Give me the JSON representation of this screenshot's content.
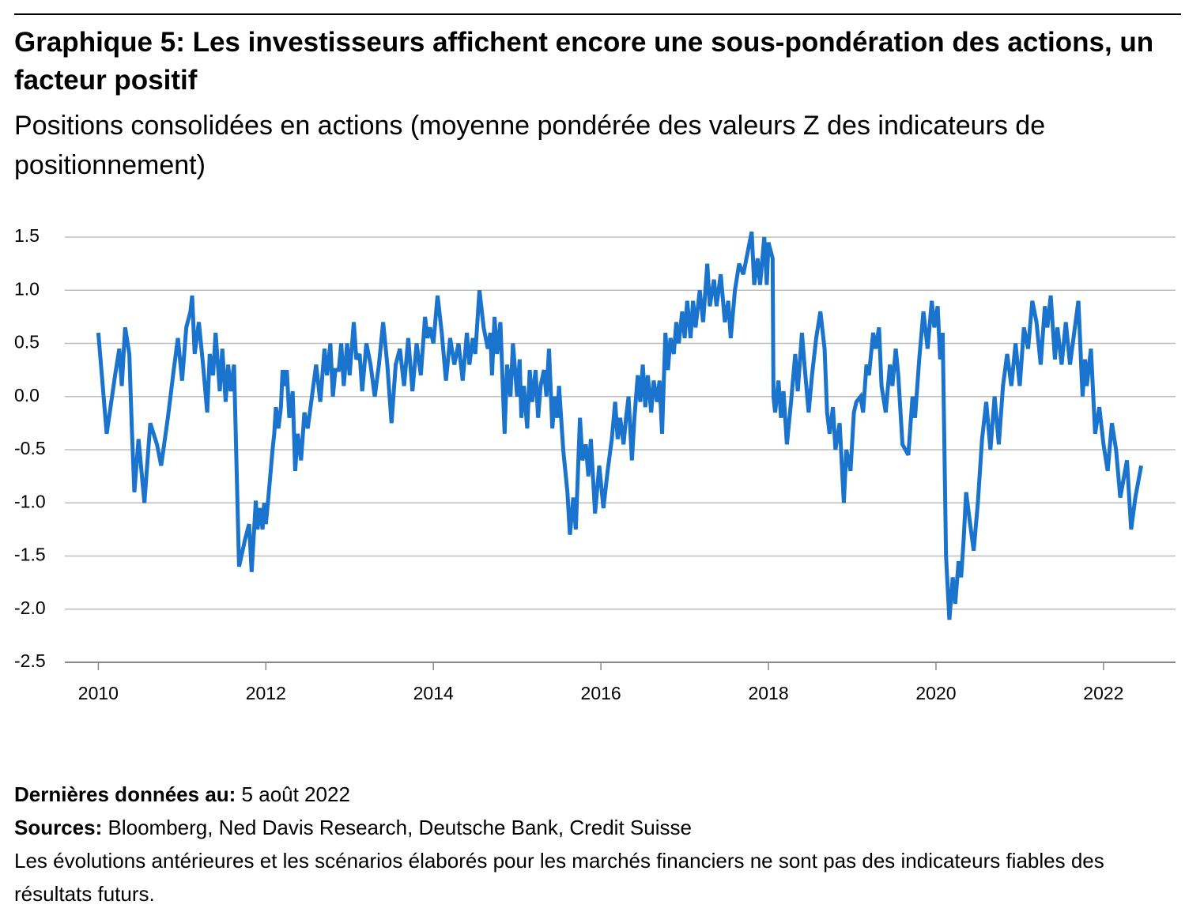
{
  "chart_data": {
    "type": "line",
    "title": "Graphique 5: Les investisseurs affichent encore une sous-pondération des actions, un facteur positif",
    "subtitle": "Positions consolidées en actions (moyenne pondérée des valeurs Z des indicateurs de positionnement)",
    "color": "#1a73cc",
    "grid": true,
    "xlim": [
      2009.6,
      2022.86
    ],
    "xticks": [
      2010,
      2012,
      2014,
      2016,
      2018,
      2020,
      2022
    ],
    "ylim": [
      -2.5,
      1.5
    ],
    "yticks": [
      1.5,
      {
        "value": 1,
        "label": "1.0"
      },
      0.5,
      {
        "value": 0,
        "label": "0.0"
      },
      -0.5,
      {
        "value": -1,
        "label": "-1.0"
      },
      -1.5,
      {
        "value": -2,
        "label": "-2.0"
      },
      -2.5
    ],
    "x": [
      2010.0,
      2010.1,
      2010.2,
      2010.25,
      2010.28,
      2010.32,
      2010.37,
      2010.4,
      2010.43,
      2010.48,
      2010.55,
      2010.62,
      2010.7,
      2010.75,
      2010.83,
      2010.9,
      2010.95,
      2011.0,
      2011.05,
      2011.1,
      2011.12,
      2011.15,
      2011.2,
      2011.25,
      2011.3,
      2011.33,
      2011.37,
      2011.4,
      2011.45,
      2011.48,
      2011.52,
      2011.55,
      2011.58,
      2011.62,
      2011.68,
      2011.75,
      2011.8,
      2011.83,
      2011.88,
      2011.9,
      2011.93,
      2011.96,
      2011.98,
      2012.0,
      2012.03,
      2012.08,
      2012.1,
      2012.12,
      2012.15,
      2012.18,
      2012.2,
      2012.23,
      2012.25,
      2012.28,
      2012.32,
      2012.35,
      2012.38,
      2012.42,
      2012.46,
      2012.5,
      2012.55,
      2012.6,
      2012.65,
      2012.7,
      2012.73,
      2012.77,
      2012.8,
      2012.83,
      2012.87,
      2012.9,
      2012.93,
      2012.97,
      2013.0,
      2013.05,
      2013.08,
      2013.12,
      2013.15,
      2013.2,
      2013.25,
      2013.3,
      2013.35,
      2013.4,
      2013.45,
      2013.5,
      2013.55,
      2013.6,
      2013.65,
      2013.7,
      2013.75,
      2013.8,
      2013.85,
      2013.9,
      2013.93,
      2013.96,
      2014.0,
      2014.05,
      2014.1,
      2014.15,
      2014.2,
      2014.25,
      2014.3,
      2014.35,
      2014.4,
      2014.43,
      2014.47,
      2014.5,
      2014.55,
      2014.6,
      2014.65,
      2014.68,
      2014.7,
      2014.73,
      2014.76,
      2014.8,
      2014.85,
      2014.88,
      2014.92,
      2014.95,
      2015.0,
      2015.03,
      2015.05,
      2015.08,
      2015.12,
      2015.15,
      2015.18,
      2015.22,
      2015.25,
      2015.28,
      2015.32,
      2015.35,
      2015.38,
      2015.42,
      2015.45,
      2015.48,
      2015.5,
      2015.55,
      2015.6,
      2015.63,
      2015.67,
      2015.7,
      2015.75,
      2015.78,
      2015.82,
      2015.85,
      2015.88,
      2015.93,
      2015.98,
      2016.03,
      2016.08,
      2016.13,
      2016.17,
      2016.2,
      2016.23,
      2016.27,
      2016.3,
      2016.33,
      2016.37,
      2016.4,
      2016.44,
      2016.47,
      2016.5,
      2016.53,
      2016.56,
      2016.6,
      2016.63,
      2016.67,
      2016.7,
      2016.73,
      2016.77,
      2016.8,
      2016.83,
      2016.87,
      2016.9,
      2016.93,
      2016.97,
      2017.0,
      2017.03,
      2017.07,
      2017.1,
      2017.13,
      2017.18,
      2017.22,
      2017.27,
      2017.3,
      2017.35,
      2017.38,
      2017.43,
      2017.48,
      2017.52,
      2017.55,
      2017.6,
      2017.65,
      2017.7,
      2017.75,
      2017.8,
      2017.83,
      2017.87,
      2017.9,
      2017.95,
      2017.98,
      2018.0,
      2018.05,
      2018.06,
      2018.08,
      2018.12,
      2018.15,
      2018.18,
      2018.22,
      2018.27,
      2018.32,
      2018.35,
      2018.4,
      2018.43,
      2018.48,
      2018.52,
      2018.57,
      2018.62,
      2018.67,
      2018.7,
      2018.73,
      2018.77,
      2018.8,
      2018.85,
      2018.9,
      2018.93,
      2018.98,
      2019.02,
      2019.05,
      2019.1,
      2019.13,
      2019.17,
      2019.2,
      2019.25,
      2019.28,
      2019.32,
      2019.35,
      2019.4,
      2019.45,
      2019.48,
      2019.52,
      2019.55,
      2019.6,
      2019.67,
      2019.72,
      2019.75,
      2019.8,
      2019.85,
      2019.9,
      2019.95,
      2019.98,
      2020.02,
      2020.05,
      2020.08,
      2020.12,
      2020.16,
      2020.2,
      2020.23,
      2020.27,
      2020.3,
      2020.33,
      2020.36,
      2020.4,
      2020.45,
      2020.5,
      2020.55,
      2020.6,
      2020.65,
      2020.7,
      2020.75,
      2020.8,
      2020.85,
      2020.9,
      2020.95,
      2021.0,
      2021.05,
      2021.1,
      2021.15,
      2021.2,
      2021.25,
      2021.3,
      2021.33,
      2021.37,
      2021.42,
      2021.45,
      2021.5,
      2021.55,
      2021.6,
      2021.65,
      2021.7,
      2021.75,
      2021.78,
      2021.8,
      2021.85,
      2021.9,
      2021.95,
      2022.0,
      2022.05,
      2022.1,
      2022.15,
      2022.2,
      2022.28,
      2022.33,
      2022.38,
      2022.45
    ],
    "values": [
      0.6,
      -0.35,
      0.2,
      0.45,
      0.1,
      0.65,
      0.4,
      -0.3,
      -0.9,
      -0.4,
      -1.0,
      -0.25,
      -0.45,
      -0.65,
      -0.2,
      0.25,
      0.55,
      0.15,
      0.65,
      0.8,
      0.95,
      0.4,
      0.7,
      0.3,
      -0.15,
      0.4,
      0.2,
      0.6,
      0.05,
      0.45,
      -0.05,
      0.3,
      0.05,
      0.3,
      -1.6,
      -1.35,
      -1.2,
      -1.65,
      -0.98,
      -1.25,
      -1.05,
      -1.25,
      -1.0,
      -1.2,
      -0.95,
      -0.5,
      -0.35,
      -0.1,
      -0.3,
      -0.1,
      0.25,
      0.1,
      0.25,
      -0.2,
      0.05,
      -0.7,
      -0.35,
      -0.6,
      -0.15,
      -0.3,
      0.0,
      0.3,
      -0.05,
      0.45,
      0.2,
      0.5,
      0.0,
      0.25,
      0.25,
      0.5,
      0.1,
      0.5,
      0.2,
      0.7,
      0.35,
      0.4,
      0.05,
      0.5,
      0.3,
      0.0,
      0.3,
      0.7,
      0.3,
      -0.25,
      0.3,
      0.45,
      0.1,
      0.55,
      0.05,
      0.5,
      0.2,
      0.75,
      0.55,
      0.65,
      0.5,
      0.95,
      0.6,
      0.15,
      0.55,
      0.3,
      0.5,
      0.15,
      0.6,
      0.3,
      0.55,
      0.4,
      1.0,
      0.65,
      0.45,
      0.6,
      0.2,
      0.75,
      0.4,
      0.7,
      -0.35,
      0.3,
      0.0,
      0.5,
      0.0,
      0.35,
      -0.2,
      0.1,
      -0.3,
      0.25,
      -0.05,
      0.25,
      -0.2,
      0.1,
      0.25,
      0.0,
      0.45,
      -0.3,
      0.0,
      -0.2,
      0.1,
      -0.5,
      -0.9,
      -1.3,
      -0.95,
      -1.25,
      -0.2,
      -0.6,
      -0.45,
      -0.75,
      -0.4,
      -1.1,
      -0.65,
      -1.05,
      -0.7,
      -0.4,
      -0.05,
      -0.4,
      -0.2,
      -0.45,
      -0.2,
      0.0,
      -0.6,
      -0.2,
      0.2,
      -0.05,
      0.3,
      -0.1,
      0.2,
      -0.15,
      0.15,
      -0.05,
      0.15,
      -0.35,
      0.6,
      0.25,
      0.55,
      0.4,
      0.7,
      0.5,
      0.8,
      0.55,
      0.9,
      0.55,
      0.9,
      0.65,
      1.0,
      0.7,
      1.25,
      0.85,
      1.1,
      0.85,
      1.15,
      0.7,
      0.9,
      0.55,
      1.0,
      1.25,
      1.15,
      1.35,
      1.55,
      1.05,
      1.3,
      1.05,
      1.5,
      1.05,
      1.45,
      1.3,
      0.0,
      -0.15,
      0.15,
      -0.2,
      0.05,
      -0.45,
      -0.05,
      0.4,
      0.05,
      0.6,
      0.3,
      -0.15,
      0.2,
      0.55,
      0.8,
      0.45,
      -0.15,
      -0.35,
      -0.1,
      -0.5,
      -0.25,
      -1.0,
      -0.5,
      -0.7,
      -0.15,
      -0.05,
      0.0,
      -0.15,
      0.3,
      0.2,
      0.6,
      0.45,
      0.65,
      0.1,
      -0.15,
      0.3,
      0.1,
      0.45,
      0.2,
      -0.45,
      -0.55,
      0.0,
      -0.2,
      0.35,
      0.8,
      0.45,
      0.9,
      0.65,
      0.85,
      0.35,
      0.6,
      -1.5,
      -2.1,
      -1.7,
      -1.95,
      -1.55,
      -1.7,
      -1.35,
      -0.9,
      -1.15,
      -1.45,
      -1.0,
      -0.4,
      -0.05,
      -0.5,
      0.0,
      -0.45,
      0.1,
      0.4,
      0.1,
      0.5,
      0.1,
      0.65,
      0.45,
      0.9,
      0.7,
      0.3,
      0.85,
      0.65,
      0.95,
      0.35,
      0.65,
      0.3,
      0.7,
      0.3,
      0.6,
      0.9,
      0.0,
      0.35,
      0.1,
      0.45,
      -0.35,
      -0.1,
      -0.45,
      -0.7,
      -0.25,
      -0.5,
      -0.95,
      -0.6,
      -1.25,
      -0.95,
      -0.65
    ],
    "footnotes": [
      {
        "label": "Dernières données au:",
        "text": "5 août 2022"
      },
      {
        "label": "Sources:",
        "text": "Bloomberg, Ned Davis Research, Deutsche Bank, Credit Suisse"
      }
    ],
    "disclaimer": "Les évolutions antérieures et les scénarios élaborés pour les marchés financiers ne sont pas des indicateurs fiables des résultats futurs."
  }
}
